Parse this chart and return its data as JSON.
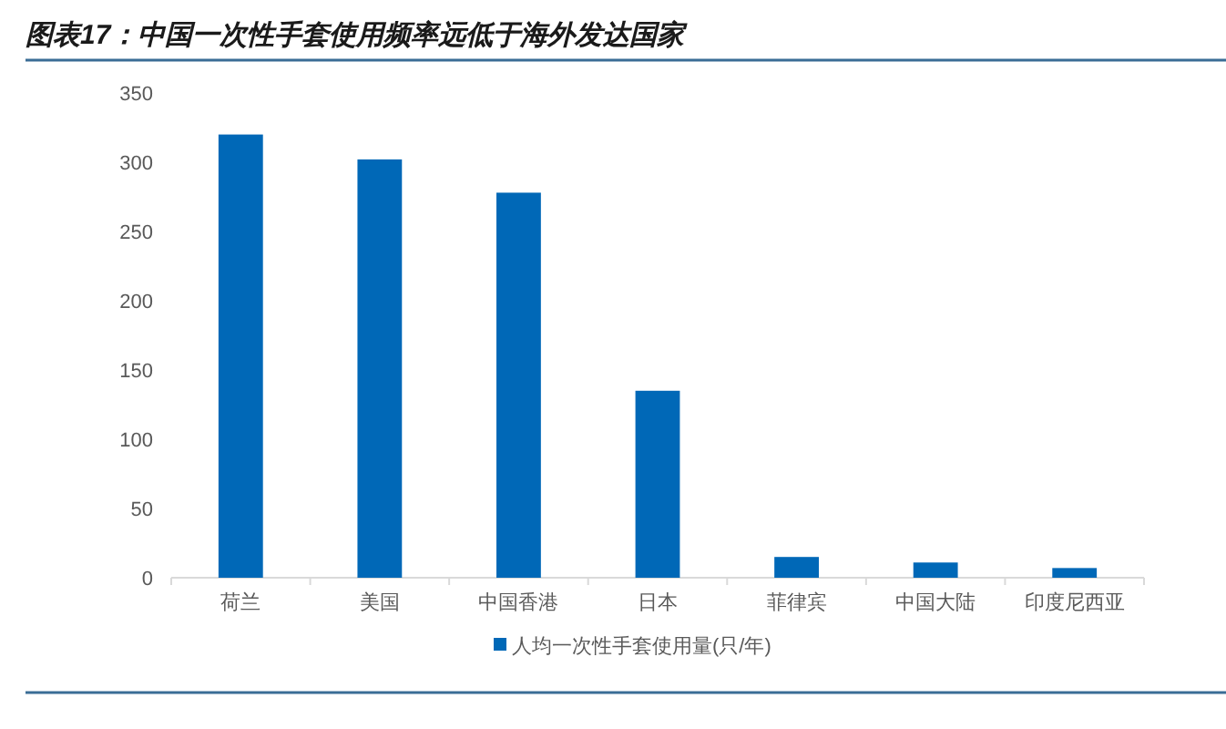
{
  "chart_data": {
    "type": "bar",
    "title": "图表17：中国一次性手套使用频率远低于海外发达国家",
    "categories": [
      "荷兰",
      "美国",
      "中国香港",
      "日本",
      "菲律宾",
      "中国大陆",
      "印度尼西亚"
    ],
    "series": [
      {
        "name": "人均一次性手套使用量(只/年)",
        "color": "#0068b7",
        "values": [
          320,
          302,
          278,
          135,
          15,
          11,
          7
        ]
      }
    ],
    "ylim": [
      0,
      350
    ],
    "yticks": [
      0,
      50,
      100,
      150,
      200,
      250,
      300,
      350
    ],
    "grid": false,
    "legend": "bottom"
  }
}
